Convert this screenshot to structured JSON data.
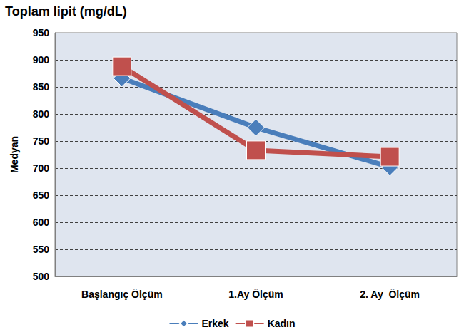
{
  "chart_data": {
    "type": "line",
    "title": "Toplam lipit (mg/dL)",
    "y_label": "Medyan",
    "categories": [
      "Başlangıç Ölçüm",
      "1.Ay Ölçüm",
      "2. Ay  Ölçüm"
    ],
    "series": [
      {
        "name": "Erkek",
        "color": "#4a7ebb",
        "marker": "diamond",
        "line_style": "solid",
        "values": [
          866,
          775,
          702
        ]
      },
      {
        "name": "Kadın",
        "color": "#c0504d",
        "marker": "square",
        "line_style": "solid",
        "values": [
          888,
          733,
          721
        ]
      }
    ],
    "ylim": [
      500,
      950
    ],
    "yticks": [
      500,
      550,
      600,
      650,
      700,
      750,
      800,
      850,
      900,
      950
    ],
    "grid": true,
    "legend": "bottom"
  }
}
